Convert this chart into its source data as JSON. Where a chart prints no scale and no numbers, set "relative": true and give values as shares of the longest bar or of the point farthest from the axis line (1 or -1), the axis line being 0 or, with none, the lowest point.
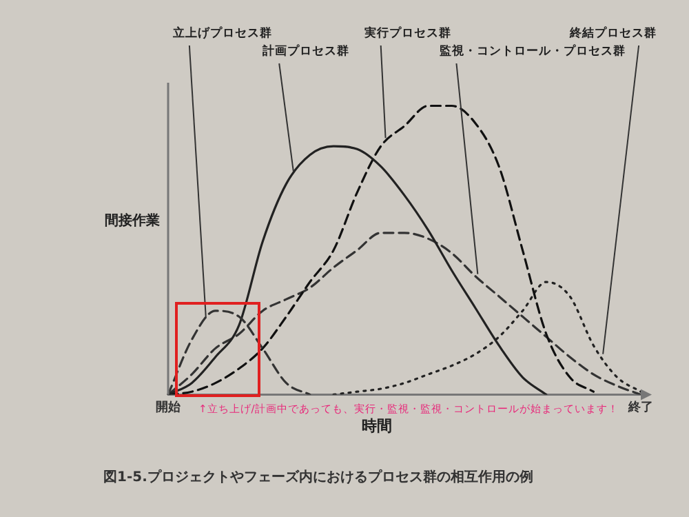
{
  "chart_data": {
    "type": "line",
    "relative": true,
    "ylabel": "間接作業",
    "xlabel": "時間",
    "annotations": [
      "↑立ち上げ/計画中であっても、実行・監視・監視・コントロールが始まっています！",
      "図1-5.プロジェクトやフェーズ内におけるプロセス群の相互作用の例"
    ],
    "categories": [
      "開始",
      null,
      null,
      null,
      null,
      null,
      null,
      null,
      null,
      null,
      null,
      null,
      null,
      null,
      null,
      null,
      null,
      null,
      null,
      null,
      "終了"
    ],
    "legend": false,
    "grid": false,
    "marker": "none",
    "series": [
      {
        "name": "立上げプロセス群",
        "color": "#333333",
        "line_style": "dashed",
        "values": [
          0,
          0.19,
          0.29,
          0.27,
          0.16,
          0.04,
          0,
          null,
          null,
          null,
          null,
          null,
          null,
          null,
          null,
          null,
          null,
          null,
          null,
          null,
          null
        ]
      },
      {
        "name": "計画プロセス群",
        "color": "#222222",
        "line_style": "solid",
        "values": [
          0,
          0.04,
          0.13,
          0.24,
          0.53,
          0.73,
          0.83,
          0.86,
          0.85,
          0.79,
          0.69,
          0.57,
          0.43,
          0.3,
          0.17,
          0.06,
          0,
          null,
          null,
          null,
          null
        ]
      },
      {
        "name": "実行プロセス群",
        "color": "#111111",
        "line_style": "dashed",
        "values": [
          0,
          0.01,
          0.04,
          0.09,
          0.16,
          0.27,
          0.39,
          0.5,
          0.7,
          0.86,
          0.93,
          1,
          1,
          0.94,
          0.79,
          0.5,
          0.21,
          0.06,
          0.01,
          null,
          null
        ]
      },
      {
        "name": "監視・コントロール・プロセス群",
        "color": "#333333",
        "line_style": "dashed",
        "values": [
          0,
          0.07,
          0.16,
          0.21,
          0.29,
          0.33,
          0.37,
          0.44,
          0.5,
          0.56,
          0.56,
          0.54,
          0.49,
          0.41,
          0.34,
          0.27,
          0.2,
          0.13,
          0.07,
          0.03,
          0
        ]
      },
      {
        "name": "終結プロセス群",
        "color": "#222222",
        "line_style": "dotted",
        "values": [
          null,
          null,
          null,
          null,
          null,
          null,
          null,
          0,
          0.01,
          0.02,
          0.04,
          0.07,
          0.1,
          0.14,
          0.2,
          0.29,
          0.39,
          0.34,
          0.17,
          0.06,
          0.01
        ]
      }
    ]
  }
}
